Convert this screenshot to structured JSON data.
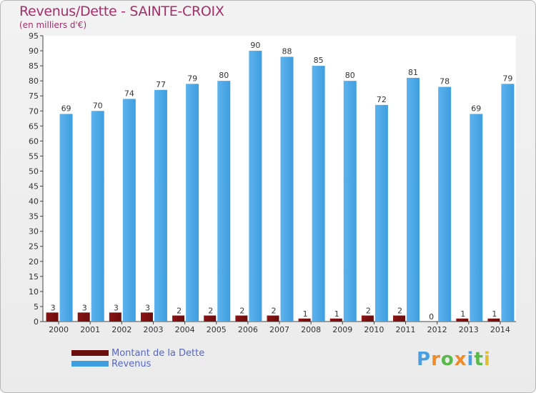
{
  "chart_data": {
    "type": "bar",
    "title": "Revenus/Dette - SAINTE-CROIX",
    "subtitle": "(en milliers d'€)",
    "categories": [
      "2000",
      "2001",
      "2002",
      "2003",
      "2004",
      "2005",
      "2006",
      "2007",
      "2008",
      "2009",
      "2010",
      "2011",
      "2012",
      "2013",
      "2014"
    ],
    "series": [
      {
        "name": "Montant de la Dette",
        "color": "#6b0d0d",
        "values": [
          3,
          3,
          3,
          3,
          2,
          2,
          2,
          2,
          1,
          1,
          2,
          2,
          0,
          1,
          1
        ]
      },
      {
        "name": "Revenus",
        "color": "#3f9ee0",
        "values": [
          69,
          70,
          74,
          77,
          79,
          80,
          90,
          88,
          85,
          80,
          72,
          81,
          78,
          69,
          79
        ]
      }
    ],
    "ylim": [
      0,
      95
    ],
    "ytick_step": 5,
    "grid": false,
    "legend_position": "bottom-left"
  },
  "logo": {
    "letters": [
      "P",
      "r",
      "o",
      "x",
      "i",
      "t",
      "i"
    ],
    "colors": [
      "#4a9fe0",
      "#f08a2a",
      "#5bb84a",
      "#f08a2a",
      "#4a9fe0",
      "#5bb84a",
      "#e0c030"
    ]
  }
}
